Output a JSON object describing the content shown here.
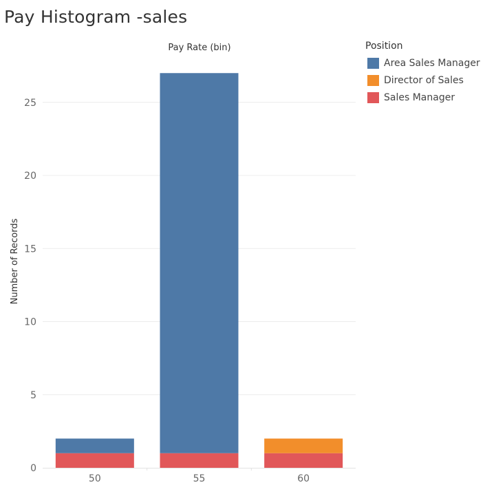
{
  "page": {
    "title": "Pay Histogram -sales"
  },
  "legend": {
    "title": "Position",
    "items": [
      {
        "label": "Area Sales Manager",
        "color": "#4e79a7"
      },
      {
        "label": "Director of Sales",
        "color": "#f28e2b"
      },
      {
        "label": "Sales Manager",
        "color": "#e15759"
      }
    ]
  },
  "chart_data": {
    "type": "bar",
    "stacked": true,
    "title": "Pay Histogram -sales",
    "xlabel": "Pay Rate (bin)",
    "ylabel": "Number of Records",
    "categories": [
      "50",
      "55",
      "60"
    ],
    "ylim": [
      0,
      28
    ],
    "yticks": [
      0,
      5,
      10,
      15,
      20,
      25
    ],
    "grid": true,
    "legend_position": "top-right",
    "series": [
      {
        "name": "Sales Manager",
        "color": "#e15759",
        "values": [
          1,
          1,
          1
        ]
      },
      {
        "name": "Director of Sales",
        "color": "#f28e2b",
        "values": [
          0,
          0,
          1
        ]
      },
      {
        "name": "Area Sales Manager",
        "color": "#4e79a7",
        "values": [
          1,
          26,
          0
        ]
      }
    ]
  }
}
